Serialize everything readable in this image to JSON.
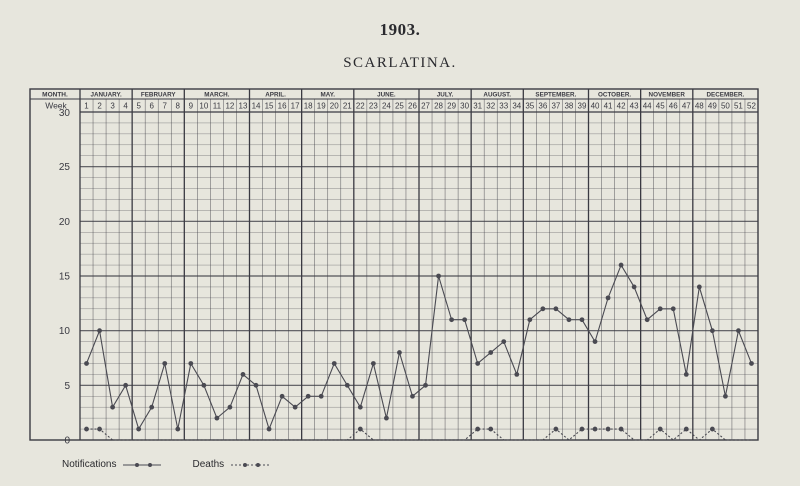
{
  "chart_data": {
    "type": "line",
    "title": "SCARLATINA.",
    "year_label": "1903.",
    "row_labels": {
      "month": "MONTH.",
      "week": "Week"
    },
    "months": [
      {
        "label": "JANUARY.",
        "weeks": 4
      },
      {
        "label": "FEBRUARY",
        "weeks": 4
      },
      {
        "label": "MARCH.",
        "weeks": 5
      },
      {
        "label": "APRIL.",
        "weeks": 4
      },
      {
        "label": "MAY.",
        "weeks": 4
      },
      {
        "label": "JUNE.",
        "weeks": 5
      },
      {
        "label": "JULY.",
        "weeks": 4
      },
      {
        "label": "AUGUST.",
        "weeks": 4
      },
      {
        "label": "SEPTEMBER.",
        "weeks": 5
      },
      {
        "label": "OCTOBER.",
        "weeks": 4
      },
      {
        "label": "NOVEMBER",
        "weeks": 4
      },
      {
        "label": "DECEMBER.",
        "weeks": 5
      }
    ],
    "x": [
      1,
      2,
      3,
      4,
      5,
      6,
      7,
      8,
      9,
      10,
      11,
      12,
      13,
      14,
      15,
      16,
      17,
      18,
      19,
      20,
      21,
      22,
      23,
      24,
      25,
      26,
      27,
      28,
      29,
      30,
      31,
      32,
      33,
      34,
      35,
      36,
      37,
      38,
      39,
      40,
      41,
      42,
      43,
      44,
      45,
      46,
      47,
      48,
      49,
      50,
      51,
      52
    ],
    "ylim": [
      0,
      30
    ],
    "yticks": [
      0,
      5,
      10,
      15,
      20,
      25,
      30
    ],
    "grid": true,
    "series": [
      {
        "name": "Notifications",
        "style": "solid",
        "color": "#4a4a52",
        "values": [
          7,
          10,
          3,
          5,
          1,
          3,
          7,
          1,
          7,
          5,
          2,
          3,
          6,
          5,
          1,
          4,
          3,
          4,
          4,
          7,
          5,
          3,
          7,
          2,
          8,
          4,
          5,
          15,
          11,
          11,
          7,
          8,
          9,
          6,
          11,
          12,
          12,
          11,
          11,
          9,
          13,
          16,
          14,
          11,
          12,
          12,
          6,
          14,
          10,
          4,
          10,
          7
        ]
      },
      {
        "name": "Deaths",
        "style": "dashed",
        "color": "#4a4a52",
        "values": [
          1,
          1,
          0,
          0,
          0,
          0,
          0,
          0,
          0,
          0,
          0,
          0,
          0,
          0,
          0,
          0,
          0,
          0,
          0,
          0,
          0,
          1,
          0,
          0,
          0,
          0,
          0,
          0,
          0,
          0,
          1,
          1,
          0,
          0,
          0,
          0,
          1,
          0,
          1,
          1,
          1,
          1,
          0,
          0,
          1,
          0,
          1,
          0,
          1,
          0,
          0,
          0
        ]
      }
    ],
    "legend_position": "bottom-left"
  }
}
